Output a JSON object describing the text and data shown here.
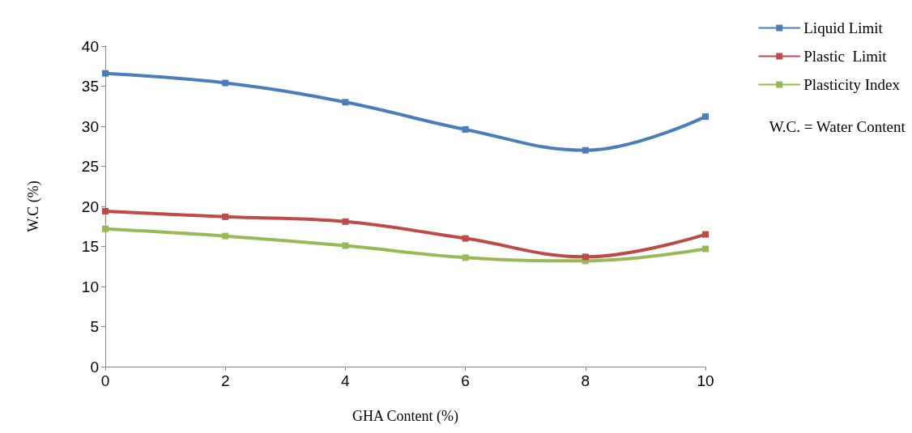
{
  "chart_data": {
    "type": "line",
    "xlabel": "GHA Content (%)",
    "ylabel": "W.C (%)",
    "x": [
      0,
      2,
      4,
      6,
      8,
      10
    ],
    "series": [
      {
        "name": "Liquid Limit",
        "color": "#4a7ebb",
        "values": [
          36.6,
          35.4,
          33.0,
          29.6,
          27.0,
          31.2
        ]
      },
      {
        "name": "Plastic  Limit",
        "color": "#be4b48",
        "values": [
          19.4,
          18.7,
          18.1,
          16.0,
          13.7,
          16.5
        ]
      },
      {
        "name": "Plasticity Index",
        "color": "#98b954",
        "values": [
          17.2,
          16.3,
          15.1,
          13.6,
          13.2,
          14.7
        ]
      }
    ],
    "xlim": [
      0,
      10
    ],
    "xticks": [
      0,
      2,
      4,
      6,
      8,
      10
    ],
    "ylim": [
      0,
      40
    ],
    "yticks": [
      0,
      5,
      10,
      15,
      20,
      25,
      30,
      35,
      40
    ],
    "annotations": [
      "W.C. = Water Content"
    ],
    "legend": "right",
    "grid": false,
    "marker": "square",
    "line_style": "solid"
  }
}
